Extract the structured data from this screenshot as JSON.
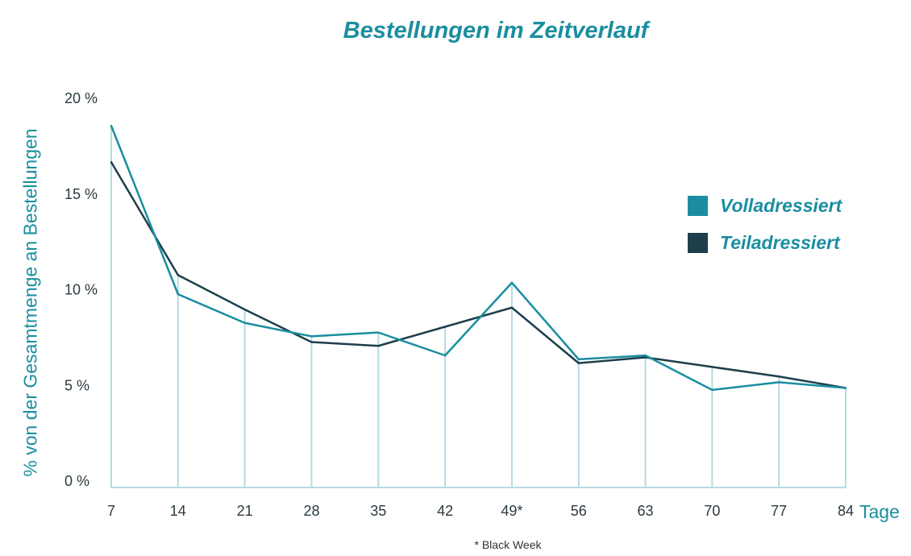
{
  "chart_data": {
    "type": "line",
    "title": "Bestellungen im Zeitverlauf",
    "ylabel": "% von der Gesamtmenge an Bestellungen",
    "xlabel": "Tage",
    "x": [
      "7",
      "14",
      "21",
      "28",
      "35",
      "42",
      "49*",
      "56",
      "63",
      "70",
      "77",
      "84"
    ],
    "ylim": [
      0,
      20
    ],
    "yticks": [
      "0 %",
      "5 %",
      "10 %",
      "15 %",
      "20 %"
    ],
    "series": [
      {
        "name": "Volladressiert",
        "color": "#1a8ea0",
        "values": [
          18.9,
          10.1,
          8.6,
          7.9,
          8.1,
          6.9,
          10.7,
          6.7,
          6.9,
          5.1,
          5.5,
          5.2
        ]
      },
      {
        "name": "Teiladressiert",
        "color": "#1d3f4b",
        "values": [
          17.0,
          11.1,
          9.3,
          7.6,
          7.4,
          8.4,
          9.4,
          6.5,
          6.8,
          6.3,
          5.8,
          5.2
        ]
      }
    ],
    "legend": "right",
    "grid": "vertical lines at each x position",
    "footnote": "* Black Week"
  }
}
